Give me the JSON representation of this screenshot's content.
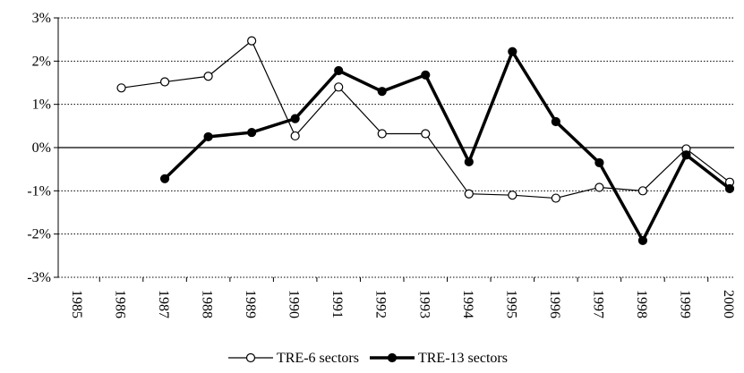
{
  "chart_data": {
    "type": "line",
    "categories": [
      "1985",
      "1986",
      "1987",
      "1988",
      "1989",
      "1990",
      "1991",
      "1992",
      "1993",
      "1994",
      "1995",
      "1996",
      "1997",
      "1998",
      "1999",
      "2000"
    ],
    "series": [
      {
        "name": "TRE-6 sectors",
        "color": "#000000",
        "filled": false,
        "values": [
          null,
          1.38,
          1.52,
          1.65,
          2.47,
          0.27,
          1.4,
          0.32,
          0.32,
          -1.07,
          -1.1,
          -1.17,
          -0.92,
          -1.0,
          -0.03,
          -0.8
        ]
      },
      {
        "name": "TRE-13 sectors",
        "color": "#000000",
        "filled": true,
        "values": [
          null,
          null,
          -0.72,
          0.25,
          0.35,
          0.67,
          1.78,
          1.3,
          1.68,
          -0.33,
          2.22,
          0.6,
          -0.35,
          -2.15,
          -0.17,
          -0.95
        ]
      }
    ],
    "ylim": [
      -3,
      3
    ],
    "yticks": [
      {
        "value": -3,
        "label": "-3%"
      },
      {
        "value": -2,
        "label": "-2%"
      },
      {
        "value": -1,
        "label": "-1%"
      },
      {
        "value": 0,
        "label": "0%"
      },
      {
        "value": 1,
        "label": "1%"
      },
      {
        "value": 2,
        "label": "2%"
      },
      {
        "value": 3,
        "label": "3%"
      }
    ],
    "grid": true,
    "legend": "bottom"
  }
}
